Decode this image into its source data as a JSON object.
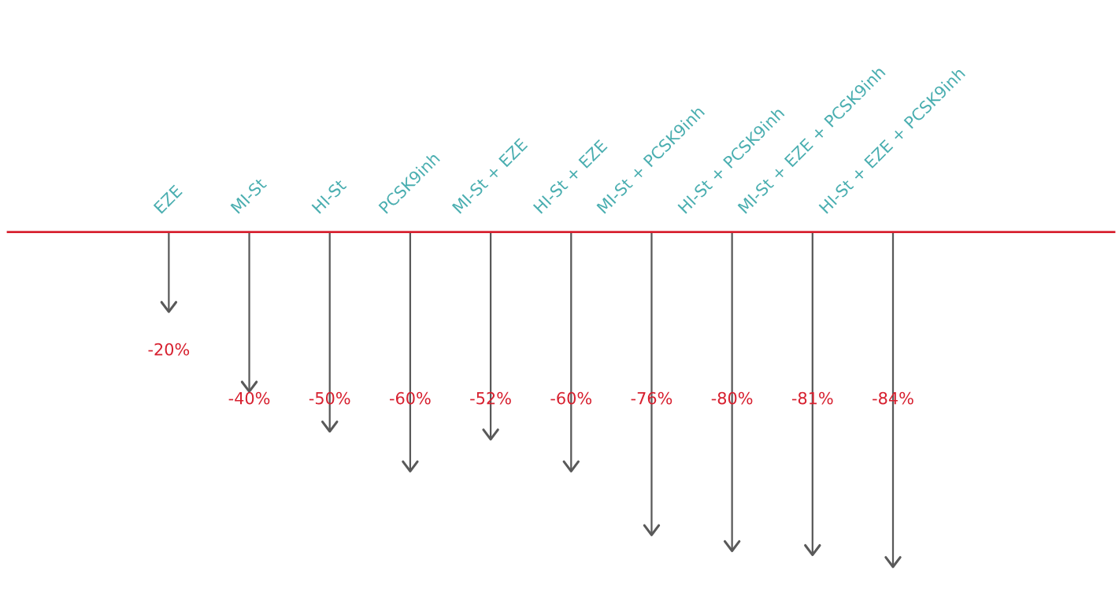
{
  "chart_data": {
    "type": "bar",
    "categories": [
      "EZE",
      "MI-St",
      "HI-St",
      "PCSK9inh",
      "MI-St + EZE",
      "HI-St + EZE",
      "MI-St + PCSK9inh",
      "HI-St + PCSK9inh",
      "MI-St + EZE + PCSK9inh",
      "HI-St + EZE + PCSK9inh"
    ],
    "values": [
      -20,
      -40,
      -50,
      -60,
      -52,
      -60,
      -76,
      -80,
      -81,
      -84
    ],
    "value_labels": [
      "-20%",
      "-40%",
      "-50%",
      "-60%",
      "-52%",
      "-60%",
      "-76%",
      "-80%",
      "-81%",
      "-84%"
    ],
    "color": "#595959",
    "legend": false
  }
}
